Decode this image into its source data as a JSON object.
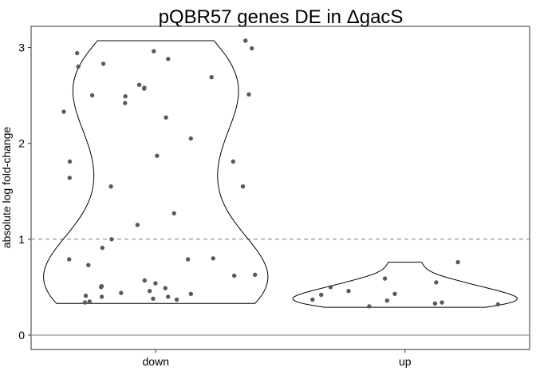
{
  "chart_data": {
    "type": "violin",
    "title": "pQBR57 genes DE in ΔgacS",
    "xlabel": "",
    "ylabel": "absolute log fold-change",
    "categories": [
      "down",
      "up"
    ],
    "ylim": [
      -0.15,
      3.22
    ],
    "yticks": [
      0,
      1,
      2,
      3
    ],
    "reference_lines": [
      {
        "y": 1,
        "style": "dashed"
      },
      {
        "y": 0,
        "style": "solid"
      }
    ],
    "grid": false,
    "legend": "none",
    "colors": {
      "points": "#5a5a5a",
      "violin_stroke": "#000000",
      "reference_line": "#7f7f7f"
    },
    "points": [
      {
        "category": "down",
        "values": [
          2.96,
          2.88,
          2.94,
          2.83,
          2.57,
          1.87,
          1.64,
          1.81,
          1.27,
          1.15,
          1.0,
          0.8,
          0.79,
          0.79,
          0.54,
          0.51,
          0.43,
          0.41,
          0.4,
          0.38,
          0.35,
          2.33,
          3.07,
          2.99,
          2.8,
          2.58,
          2.51,
          2.5,
          2.61,
          2.27,
          2.05,
          1.55,
          0.73,
          0.63,
          0.57,
          0.5,
          0.49,
          0.44,
          0.34,
          2.69,
          2.49,
          2.42,
          1.81,
          1.55,
          0.91,
          0.62,
          0.46,
          0.4,
          0.37
        ]
      },
      {
        "category": "up",
        "values": [
          0.59,
          0.76,
          0.55,
          0.5,
          0.46,
          0.43,
          0.42,
          0.37,
          0.36,
          0.34,
          0.33,
          0.32,
          0.3
        ]
      }
    ],
    "violins": [
      {
        "category": "down",
        "min": 0.33,
        "max": 3.07
      },
      {
        "category": "up",
        "min": 0.29,
        "max": 0.76
      }
    ]
  }
}
